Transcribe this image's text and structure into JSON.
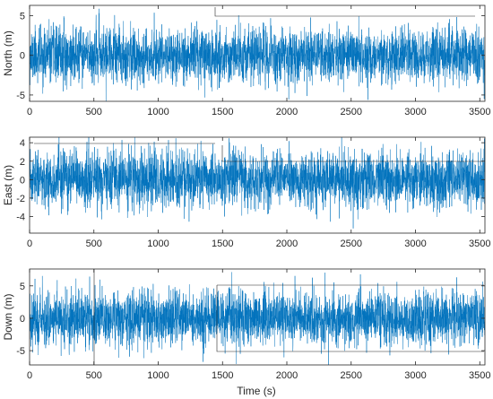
{
  "figure": {
    "line_color": "#0072BD",
    "axis_color": "#262626",
    "xlabel": "Time (s)"
  },
  "chart_data": [
    {
      "type": "line",
      "title": "",
      "ylabel": "North (m)",
      "xlabel": "",
      "xlim": [
        0,
        3540
      ],
      "ylim": [
        -5.8,
        6.3
      ],
      "xticks": [
        0,
        500,
        1000,
        1500,
        2000,
        2500,
        3000,
        3500
      ],
      "yticks": [
        -5,
        0,
        5
      ],
      "noise": {
        "sample_interval_s": 1,
        "sd": 1.7,
        "max_abs": 5.9,
        "seed": 11
      },
      "series": [
        {
          "color": "#0072BD"
        }
      ]
    },
    {
      "type": "line",
      "title": "",
      "ylabel": "East (m)",
      "xlabel": "",
      "xlim": [
        0,
        3540
      ],
      "ylim": [
        -5.8,
        4.6
      ],
      "xticks": [
        0,
        500,
        1000,
        1500,
        2000,
        2500,
        3000,
        3500
      ],
      "yticks": [
        -4,
        -2,
        0,
        2,
        4
      ],
      "noise": {
        "sample_interval_s": 1,
        "sd": 1.5,
        "max_abs": 5.5,
        "seed": 23
      },
      "series": [
        {
          "color": "#0072BD"
        }
      ]
    },
    {
      "type": "line",
      "title": "",
      "ylabel": "Down (m)",
      "xlabel": "Time (s)",
      "xlim": [
        0,
        3540
      ],
      "ylim": [
        -7.2,
        7.6
      ],
      "xticks": [
        0,
        500,
        1000,
        1500,
        2000,
        2500,
        3000,
        3500
      ],
      "yticks": [
        -5,
        0,
        5
      ],
      "noise": {
        "sample_interval_s": 1,
        "sd": 2.1,
        "max_abs": 7.4,
        "seed": 37
      },
      "series": [
        {
          "color": "#0072BD"
        }
      ]
    }
  ]
}
